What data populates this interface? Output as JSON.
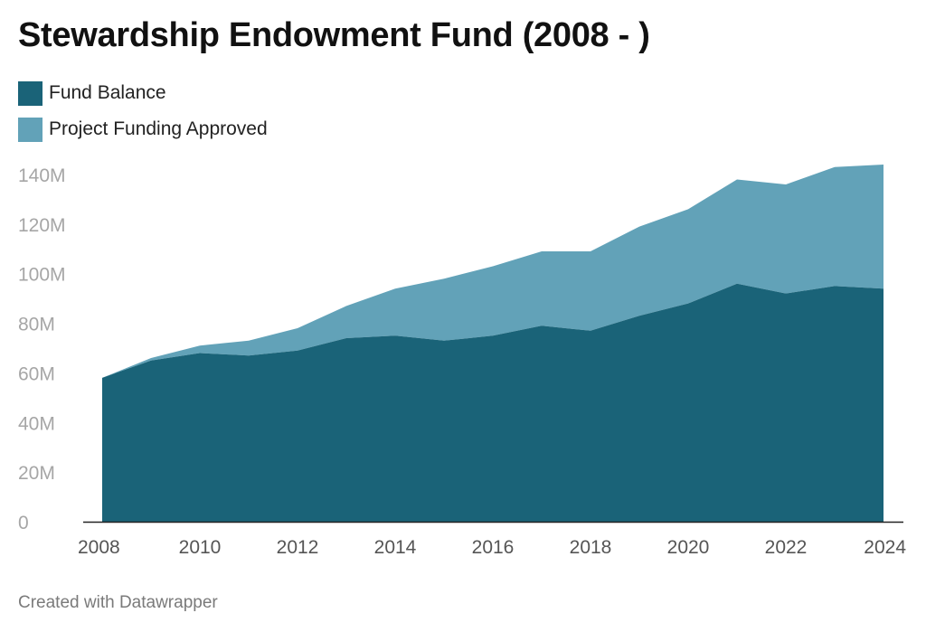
{
  "title": "Stewardship Endowment Fund (2008 - )",
  "footer": "Created with Datawrapper",
  "colors": {
    "fund_balance": "#1a6378",
    "project_funding": "#62a2b8",
    "axis_line": "#222222",
    "tick_text": "#a6a6a6"
  },
  "legend": [
    {
      "label": "Fund Balance",
      "color": "#1a6378"
    },
    {
      "label": "Project Funding Approved",
      "color": "#62a2b8"
    }
  ],
  "chart_data": {
    "type": "area",
    "stacked": true,
    "title": "Stewardship Endowment Fund (2008 - )",
    "x": [
      2008,
      2009,
      2010,
      2011,
      2012,
      2013,
      2014,
      2015,
      2016,
      2017,
      2018,
      2019,
      2020,
      2021,
      2022,
      2023,
      2024
    ],
    "series": [
      {
        "name": "Fund Balance",
        "values": [
          58,
          65,
          68,
          67,
          69,
          74,
          75,
          73,
          75,
          79,
          77,
          83,
          88,
          96,
          92,
          95,
          94
        ]
      },
      {
        "name": "Project Funding Approved",
        "values": [
          0,
          1,
          3,
          6,
          9,
          13,
          19,
          25,
          28,
          30,
          32,
          36,
          38,
          42,
          44,
          48,
          50
        ]
      }
    ],
    "ylim": [
      0,
      145
    ],
    "y_ticks": [
      0,
      20,
      40,
      60,
      80,
      100,
      120,
      140
    ],
    "y_tick_labels": [
      "0",
      "20M",
      "40M",
      "60M",
      "80M",
      "100M",
      "120M",
      "140M"
    ],
    "x_ticks": [
      2008,
      2010,
      2012,
      2014,
      2016,
      2018,
      2020,
      2022,
      2024
    ],
    "x_tick_labels": [
      "2008",
      "2010",
      "2012",
      "2014",
      "2016",
      "2018",
      "2020",
      "2022",
      "2024"
    ],
    "grid": false,
    "legend_position": "top-left"
  }
}
